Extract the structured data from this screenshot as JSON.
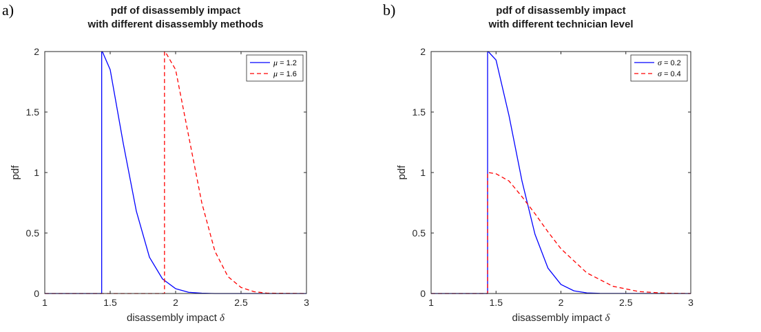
{
  "chart_data": [
    {
      "type": "line",
      "panel_label": "a)",
      "title": [
        "pdf of disassembly impact",
        "with different disassembly methods"
      ],
      "xlabel": "disassembly impact",
      "xlabel_symbol": "δ",
      "ylabel": "pdf",
      "xlim": [
        1,
        3
      ],
      "ylim": [
        0,
        2
      ],
      "xticks": [
        "1",
        "1.5",
        "2",
        "2.5",
        "3"
      ],
      "yticks": [
        "0",
        "0.5",
        "1",
        "1.5",
        "2"
      ],
      "legend_position": "top-right",
      "grid": false,
      "series": [
        {
          "symbol": "μ",
          "legend_value": " = 1.2",
          "color": "#0000ff",
          "style": "solid",
          "x": [
            1.0,
            1.435,
            1.435,
            1.44,
            1.5,
            1.6,
            1.7,
            1.8,
            1.9,
            2.0,
            2.1,
            2.2,
            2.3,
            3.0
          ],
          "y": [
            0,
            0,
            2.0,
            2.0,
            1.85,
            1.24,
            0.68,
            0.3,
            0.12,
            0.04,
            0.01,
            0.003,
            0,
            0
          ]
        },
        {
          "symbol": "μ",
          "legend_value": " = 1.6",
          "color": "#ff0000",
          "style": "dashed",
          "x": [
            1.0,
            1.915,
            1.915,
            1.92,
            2.0,
            2.1,
            2.2,
            2.3,
            2.4,
            2.5,
            2.6,
            2.7,
            3.0
          ],
          "y": [
            0,
            0,
            2.0,
            2.0,
            1.85,
            1.3,
            0.75,
            0.35,
            0.14,
            0.05,
            0.015,
            0.003,
            0
          ]
        }
      ]
    },
    {
      "type": "line",
      "panel_label": "b)",
      "title": [
        "pdf of disassembly impact",
        "with different technician level"
      ],
      "xlabel": "disassembly impact",
      "xlabel_symbol": "δ",
      "ylabel": "pdf",
      "xlim": [
        1,
        3
      ],
      "ylim": [
        0,
        2
      ],
      "xticks": [
        "1",
        "1.5",
        "2",
        "2.5",
        "3"
      ],
      "yticks": [
        "0",
        "0.5",
        "1",
        "1.5",
        "2"
      ],
      "legend_position": "top-right",
      "grid": false,
      "series": [
        {
          "symbol": "σ",
          "legend_value": " = 0.2",
          "color": "#0000ff",
          "style": "solid",
          "x": [
            1.0,
            1.435,
            1.435,
            1.44,
            1.5,
            1.6,
            1.7,
            1.8,
            1.9,
            2.0,
            2.1,
            2.2,
            2.3,
            3.0
          ],
          "y": [
            0,
            0,
            2.0,
            2.0,
            1.93,
            1.47,
            0.93,
            0.49,
            0.21,
            0.075,
            0.022,
            0.005,
            0.001,
            0
          ]
        },
        {
          "symbol": "σ",
          "legend_value": " = 0.4",
          "color": "#ff0000",
          "style": "dashed",
          "x": [
            1.0,
            1.435,
            1.435,
            1.44,
            1.5,
            1.6,
            1.7,
            1.8,
            1.9,
            2.0,
            2.2,
            2.4,
            2.6,
            2.8,
            3.0
          ],
          "y": [
            0,
            0,
            1.0,
            1.0,
            0.99,
            0.93,
            0.8,
            0.66,
            0.51,
            0.37,
            0.17,
            0.06,
            0.016,
            0.003,
            0
          ]
        }
      ]
    }
  ]
}
